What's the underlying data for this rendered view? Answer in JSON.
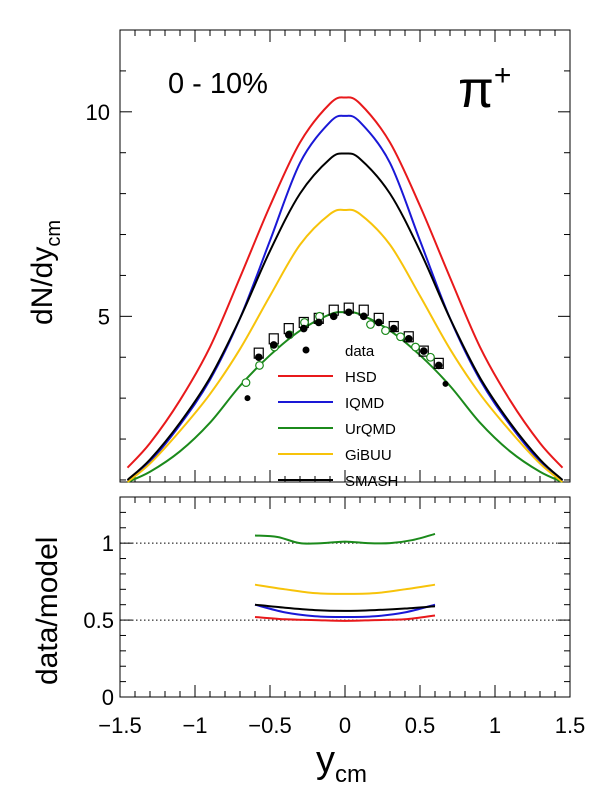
{
  "chart_data": [
    {
      "type": "line",
      "ylabel": "dN/dy",
      "ylabel_sub": "cm",
      "xlim": [
        -1.5,
        1.5
      ],
      "ylim": [
        0.95,
        12.0
      ],
      "yticks": [
        5,
        10
      ],
      "annotation_centrality": "0 - 10%",
      "annotation_particle": "π",
      "annotation_particle_sup": "+",
      "legend": [
        "data",
        "HSD",
        "IQMD",
        "UrQMD",
        "GiBUU",
        "SMASH"
      ],
      "legend_position": "center",
      "colors": {
        "HSD": "#e8191b",
        "IQMD": "#1a18d6",
        "UrQMD": "#1b8a1b",
        "GiBUU": "#f7c30a",
        "SMASH": "#000000",
        "data": "#000000"
      },
      "series": [
        {
          "name": "HSD",
          "x": [
            -1.45,
            -1.3,
            -1.1,
            -0.9,
            -0.7,
            -0.5,
            -0.3,
            -0.1,
            0,
            0.1,
            0.3,
            0.5,
            0.7,
            0.9,
            1.1,
            1.3,
            1.45
          ],
          "y": [
            1.3,
            1.9,
            2.95,
            4.25,
            5.95,
            7.7,
            9.25,
            10.2,
            10.35,
            10.2,
            9.25,
            7.7,
            5.95,
            4.25,
            2.95,
            1.9,
            1.3
          ]
        },
        {
          "name": "IQMD",
          "x": [
            -1.45,
            -1.3,
            -1.1,
            -0.9,
            -0.7,
            -0.5,
            -0.3,
            -0.1,
            0,
            0.1,
            0.3,
            0.5,
            0.7,
            0.9,
            1.1,
            1.3,
            1.45
          ],
          "y": [
            0.98,
            1.45,
            2.35,
            3.45,
            4.95,
            6.85,
            8.75,
            9.75,
            9.9,
            9.75,
            8.75,
            6.85,
            4.95,
            3.45,
            2.35,
            1.45,
            0.98
          ]
        },
        {
          "name": "UrQMD",
          "x": [
            -1.45,
            -1.3,
            -1.1,
            -0.9,
            -0.7,
            -0.5,
            -0.3,
            -0.1,
            0,
            0.1,
            0.3,
            0.5,
            0.7,
            0.9,
            1.1,
            1.3,
            1.45
          ],
          "y": [
            0.85,
            1.2,
            1.7,
            2.4,
            3.3,
            4.05,
            4.65,
            5.05,
            5.1,
            5.05,
            4.65,
            4.05,
            3.3,
            2.4,
            1.7,
            1.2,
            0.85
          ]
        },
        {
          "name": "GiBUU",
          "x": [
            -1.45,
            -1.3,
            -1.1,
            -0.9,
            -0.7,
            -0.5,
            -0.3,
            -0.1,
            0,
            0.1,
            0.3,
            0.5,
            0.7,
            0.9,
            1.1,
            1.3,
            1.45
          ],
          "y": [
            0.95,
            1.4,
            2.2,
            3.1,
            4.2,
            5.5,
            6.75,
            7.5,
            7.6,
            7.5,
            6.75,
            5.5,
            4.2,
            3.1,
            2.2,
            1.4,
            0.95
          ]
        },
        {
          "name": "SMASH",
          "x": [
            -1.45,
            -1.3,
            -1.1,
            -0.9,
            -0.7,
            -0.5,
            -0.3,
            -0.1,
            0,
            0.1,
            0.3,
            0.5,
            0.7,
            0.9,
            1.1,
            1.3,
            1.45
          ],
          "y": [
            1.0,
            1.5,
            2.4,
            3.5,
            4.95,
            6.6,
            8.0,
            8.85,
            8.98,
            8.85,
            8.0,
            6.6,
            4.95,
            3.5,
            2.4,
            1.5,
            1.0
          ]
        }
      ],
      "data_filled": {
        "x": [
          -0.575,
          -0.475,
          -0.375,
          -0.275,
          -0.175,
          -0.075,
          0.025,
          0.125,
          0.225,
          0.325,
          0.425,
          0.525,
          0.625
        ],
        "y": [
          4.0,
          4.3,
          4.55,
          4.7,
          4.85,
          5.0,
          5.1,
          5.0,
          4.85,
          4.7,
          4.45,
          4.15,
          3.8
        ]
      },
      "data_open": {
        "x": [
          -0.66,
          -0.57,
          -0.47,
          -0.37,
          -0.27,
          -0.17,
          0.17,
          0.27,
          0.37,
          0.47,
          0.57
        ],
        "y": [
          3.38,
          3.8,
          4.25,
          4.55,
          4.85,
          5.0,
          4.8,
          4.65,
          4.5,
          4.25,
          4.0
        ]
      },
      "data_boxes": {
        "x": [
          -0.575,
          -0.475,
          -0.375,
          -0.275,
          -0.175,
          -0.075,
          0.025,
          0.125,
          0.225,
          0.325,
          0.425,
          0.525,
          0.625
        ],
        "y": [
          4.1,
          4.45,
          4.7,
          4.85,
          4.95,
          5.15,
          5.2,
          5.15,
          4.95,
          4.75,
          4.5,
          4.15,
          3.85
        ]
      },
      "data_extra_filled": {
        "x": [
          -0.65,
          0.67
        ],
        "y": [
          3.0,
          3.35
        ]
      }
    },
    {
      "type": "line",
      "xlabel": "y",
      "xlabel_sub": "cm",
      "ylabel": "data/model",
      "xlim": [
        -1.5,
        1.5
      ],
      "ylim": [
        0,
        1.3
      ],
      "xticks": [
        -1.5,
        -1,
        -0.5,
        0,
        0.5,
        1,
        1.5
      ],
      "xtick_labels": [
        "−1.5",
        "−1",
        "−0.5",
        "0",
        "0.5",
        "1",
        "1.5"
      ],
      "yticks": [
        0,
        0.5,
        1
      ],
      "ytick_labels": [
        "0",
        "0.5",
        "1"
      ],
      "reference_lines": [
        0.5,
        1.0
      ],
      "series": [
        {
          "name": "HSD",
          "x": [
            -0.6,
            -0.4,
            -0.2,
            0,
            0.2,
            0.4,
            0.6
          ],
          "y": [
            0.52,
            0.505,
            0.5,
            0.495,
            0.5,
            0.505,
            0.53
          ]
        },
        {
          "name": "IQMD",
          "x": [
            -0.6,
            -0.4,
            -0.2,
            0,
            0.2,
            0.4,
            0.6
          ],
          "y": [
            0.6,
            0.55,
            0.525,
            0.52,
            0.525,
            0.55,
            0.6
          ]
        },
        {
          "name": "UrQMD",
          "x": [
            -0.6,
            -0.45,
            -0.3,
            -0.15,
            0,
            0.15,
            0.3,
            0.45,
            0.6
          ],
          "y": [
            1.05,
            1.04,
            1.0,
            1.0,
            1.01,
            1.0,
            1.0,
            1.02,
            1.06
          ]
        },
        {
          "name": "GiBUU",
          "x": [
            -0.6,
            -0.4,
            -0.2,
            0,
            0.2,
            0.4,
            0.6
          ],
          "y": [
            0.73,
            0.7,
            0.675,
            0.67,
            0.675,
            0.7,
            0.73
          ]
        },
        {
          "name": "SMASH",
          "x": [
            -0.6,
            -0.4,
            -0.2,
            0,
            0.2,
            0.4,
            0.6
          ],
          "y": [
            0.6,
            0.58,
            0.565,
            0.56,
            0.565,
            0.575,
            0.59
          ]
        }
      ]
    }
  ]
}
